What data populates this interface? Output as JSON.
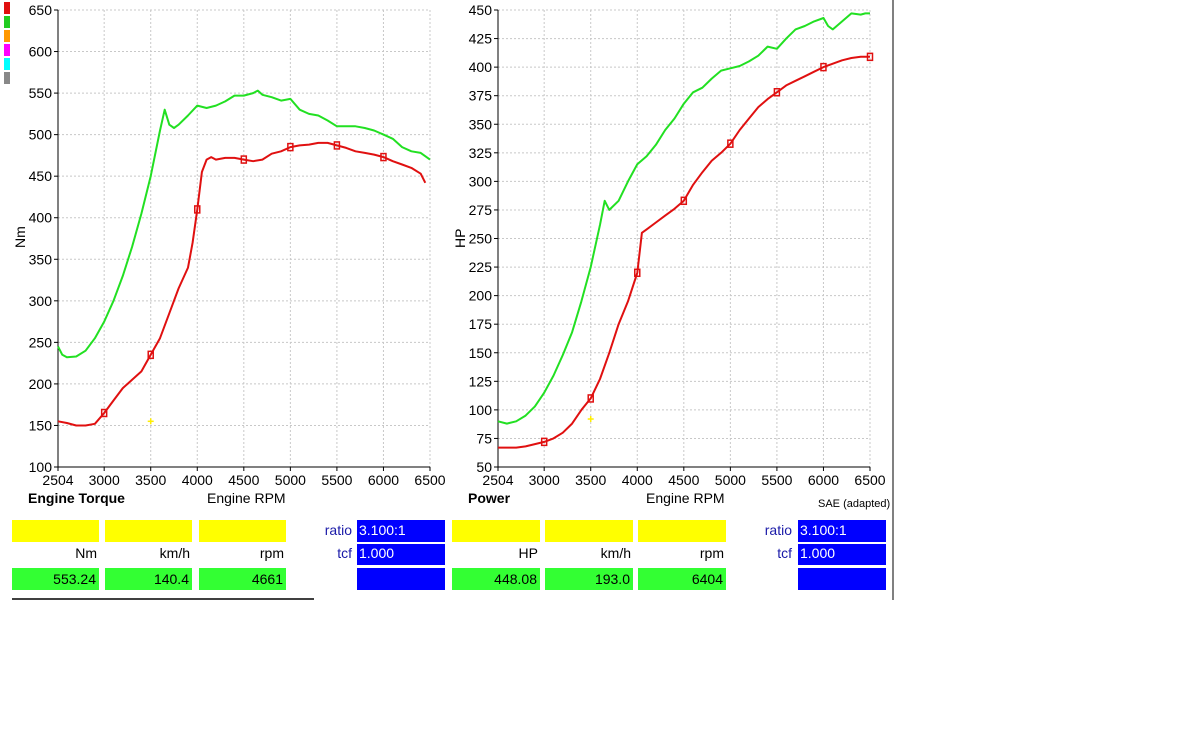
{
  "colors": {
    "green_series": "#22e022",
    "red_series": "#e01010",
    "grid": "#c8c8c8",
    "yellow_box": "#ffff00",
    "green_box": "#33ff33",
    "blue_box": "#0000ff",
    "legend_swatches": [
      "#e01010",
      "#22cc22",
      "#ff9900",
      "#ff00ff",
      "#00ffff",
      "#888888"
    ]
  },
  "chart_data": [
    {
      "type": "line",
      "title": "Engine Torque",
      "xlabel": "Engine RPM",
      "ylabel": "Nm",
      "xlim": [
        2504,
        6500
      ],
      "ylim": [
        100,
        650
      ],
      "xticks": [
        "2504",
        "3000",
        "3500",
        "4000",
        "4500",
        "5000",
        "5500",
        "6000",
        "6500"
      ],
      "xtick_values": [
        2504,
        3000,
        3500,
        4000,
        4500,
        5000,
        5500,
        6000,
        6500
      ],
      "yticks": [
        "100",
        "150",
        "200",
        "250",
        "300",
        "350",
        "400",
        "450",
        "500",
        "550",
        "600",
        "650"
      ],
      "ytick_values": [
        100,
        150,
        200,
        250,
        300,
        350,
        400,
        450,
        500,
        550,
        600,
        650
      ],
      "grid": true,
      "series": [
        {
          "color": "#22e022",
          "x": [
            2504,
            2550,
            2600,
            2700,
            2800,
            2900,
            3000,
            3100,
            3200,
            3300,
            3400,
            3500,
            3600,
            3650,
            3700,
            3750,
            3800,
            3900,
            4000,
            4100,
            4200,
            4300,
            4400,
            4500,
            4600,
            4650,
            4700,
            4800,
            4900,
            5000,
            5100,
            5200,
            5300,
            5400,
            5500,
            5600,
            5700,
            5800,
            5900,
            6000,
            6100,
            6200,
            6300,
            6400,
            6500
          ],
          "y": [
            245,
            235,
            232,
            233,
            240,
            255,
            275,
            300,
            330,
            365,
            405,
            450,
            505,
            530,
            512,
            508,
            512,
            523,
            535,
            532,
            535,
            540,
            547,
            547,
            550,
            553,
            548,
            545,
            541,
            543,
            530,
            525,
            523,
            517,
            510,
            510,
            510,
            508,
            505,
            500,
            495,
            485,
            480,
            478,
            470
          ]
        },
        {
          "color": "#e01010",
          "x": [
            2504,
            2600,
            2700,
            2800,
            2900,
            3000,
            3100,
            3200,
            3300,
            3400,
            3500,
            3600,
            3700,
            3800,
            3900,
            3950,
            4000,
            4050,
            4100,
            4150,
            4200,
            4300,
            4400,
            4500,
            4600,
            4700,
            4800,
            4900,
            5000,
            5100,
            5200,
            5300,
            5400,
            5500,
            5600,
            5700,
            5800,
            5900,
            6000,
            6100,
            6200,
            6300,
            6400,
            6450
          ],
          "y": [
            155,
            153,
            150,
            150,
            152,
            165,
            180,
            195,
            205,
            215,
            235,
            255,
            285,
            315,
            340,
            370,
            410,
            455,
            470,
            473,
            470,
            472,
            472,
            470,
            468,
            470,
            477,
            480,
            485,
            487,
            488,
            490,
            490,
            487,
            484,
            480,
            478,
            476,
            473,
            468,
            464,
            460,
            453,
            442
          ]
        }
      ],
      "marker": {
        "x": 3500,
        "y": 155
      }
    },
    {
      "type": "line",
      "title": "Power",
      "xlabel": "Engine RPM",
      "ylabel": "HP",
      "note": "SAE (adapted)",
      "xlim": [
        2504,
        6500
      ],
      "ylim": [
        50,
        450
      ],
      "xticks": [
        "2504",
        "3000",
        "3500",
        "4000",
        "4500",
        "5000",
        "5500",
        "6000",
        "6500"
      ],
      "xtick_values": [
        2504,
        3000,
        3500,
        4000,
        4500,
        5000,
        5500,
        6000,
        6500
      ],
      "yticks": [
        "50",
        "75",
        "100",
        "125",
        "150",
        "175",
        "200",
        "225",
        "250",
        "275",
        "300",
        "325",
        "350",
        "375",
        "400",
        "425",
        "450"
      ],
      "ytick_values": [
        50,
        75,
        100,
        125,
        150,
        175,
        200,
        225,
        250,
        275,
        300,
        325,
        350,
        375,
        400,
        425,
        450
      ],
      "grid": true,
      "series": [
        {
          "color": "#22e022",
          "x": [
            2504,
            2600,
            2700,
            2800,
            2900,
            3000,
            3100,
            3200,
            3300,
            3400,
            3500,
            3600,
            3650,
            3700,
            3800,
            3900,
            4000,
            4100,
            4200,
            4300,
            4400,
            4500,
            4600,
            4700,
            4800,
            4900,
            5000,
            5100,
            5200,
            5300,
            5400,
            5500,
            5600,
            5700,
            5800,
            5900,
            6000,
            6050,
            6100,
            6200,
            6300,
            6400,
            6450,
            6500
          ],
          "y": [
            90,
            88,
            90,
            95,
            103,
            115,
            130,
            148,
            168,
            195,
            225,
            262,
            283,
            275,
            283,
            300,
            315,
            322,
            332,
            345,
            355,
            368,
            378,
            382,
            390,
            397,
            399,
            401,
            405,
            410,
            418,
            416,
            425,
            433,
            436,
            440,
            443,
            436,
            433,
            440,
            447,
            446,
            447,
            447
          ]
        },
        {
          "color": "#e01010",
          "x": [
            2504,
            2600,
            2700,
            2800,
            2900,
            3000,
            3100,
            3200,
            3300,
            3400,
            3500,
            3600,
            3700,
            3800,
            3900,
            4000,
            4050,
            4100,
            4200,
            4300,
            4400,
            4500,
            4600,
            4700,
            4800,
            4900,
            5000,
            5100,
            5200,
            5300,
            5400,
            5500,
            5600,
            5700,
            5800,
            5900,
            6000,
            6100,
            6200,
            6300,
            6400,
            6500
          ],
          "y": [
            67,
            67,
            67,
            68,
            70,
            72,
            75,
            80,
            88,
            100,
            110,
            127,
            150,
            175,
            195,
            220,
            255,
            258,
            264,
            270,
            276,
            283,
            297,
            308,
            318,
            325,
            333,
            345,
            355,
            365,
            372,
            378,
            384,
            388,
            392,
            396,
            400,
            403,
            406,
            408,
            409,
            409
          ]
        }
      ],
      "marker": {
        "x": 3500,
        "y": 92
      }
    }
  ],
  "readout_left": {
    "units": [
      "Nm",
      "km/h",
      "rpm"
    ],
    "values": [
      "553.24",
      "140.4",
      "4661"
    ],
    "ratio_label": "ratio",
    "ratio_value": "3.100:1",
    "tcf_label": "tcf",
    "tcf_value": "1.000"
  },
  "readout_right": {
    "units": [
      "HP",
      "km/h",
      "rpm"
    ],
    "values": [
      "448.08",
      "193.0",
      "6404"
    ],
    "ratio_label": "ratio",
    "ratio_value": "3.100:1",
    "tcf_label": "tcf",
    "tcf_value": "1.000"
  }
}
